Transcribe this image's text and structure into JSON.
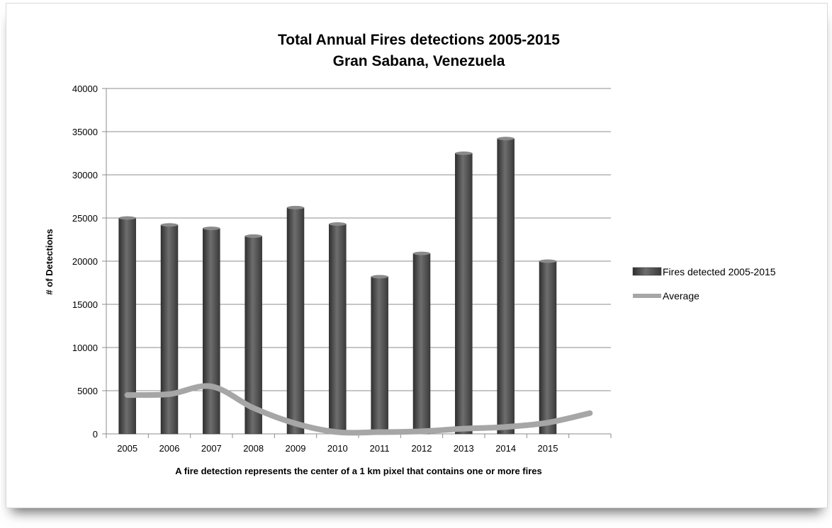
{
  "chart_data": {
    "type": "bar",
    "title": "Total Annual Fires detections 2005-2015",
    "subtitle": "Gran Sabana, Venezuela",
    "xlabel": "A fire detection represents the center of a 1 km pixel that contains  one or more fires",
    "ylabel": "# of Detections",
    "categories": [
      "2005",
      "2006",
      "2007",
      "2008",
      "2009",
      "2010",
      "2011",
      "2012",
      "2013",
      "2014",
      "2015",
      ""
    ],
    "series": [
      {
        "name": "Fires detected 2005-2015",
        "type": "bar",
        "color": "#4a4a4a",
        "values": [
          25000,
          24200,
          23800,
          22900,
          26200,
          24300,
          18200,
          20900,
          32500,
          34200,
          20000,
          null
        ]
      },
      {
        "name": "Average",
        "type": "line",
        "color": "#a6a6a6",
        "values": [
          4500,
          4600,
          5500,
          3000,
          1200,
          200,
          200,
          300,
          600,
          800,
          1300,
          2400
        ]
      }
    ],
    "ylim": [
      0,
      40000
    ],
    "yticks": [
      "0",
      "5000",
      "10000",
      "15000",
      "20000",
      "25000",
      "30000",
      "35000",
      "40000"
    ],
    "grid": true,
    "legend": "right"
  }
}
